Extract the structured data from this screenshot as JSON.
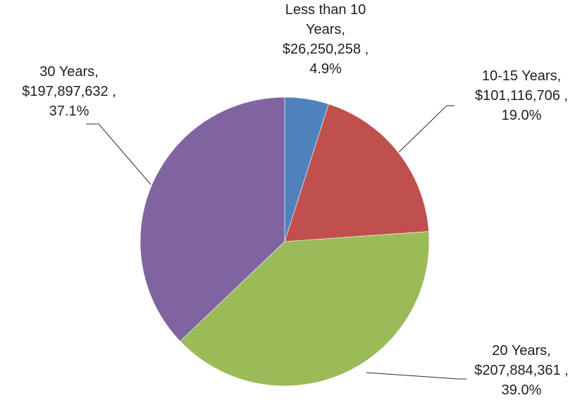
{
  "chart_data": {
    "type": "pie",
    "title": "",
    "slices": [
      {
        "label": "Less than 10 Years",
        "value": 26250258,
        "value_text": "$26,250,258",
        "percent": "4.9%",
        "color": "#4F81BD"
      },
      {
        "label": "10-15 Years",
        "value": 101116706,
        "value_text": "$101,116,706",
        "percent": "19.0%",
        "color": "#C0504D"
      },
      {
        "label": "20 Years",
        "value": 207884361,
        "value_text": "$207,884,361",
        "percent": "39.0%",
        "color": "#9BBB59"
      },
      {
        "label": "30 Years",
        "value": 197897632,
        "value_text": "$197,897,632",
        "percent": "37.1%",
        "color": "#8064A2"
      }
    ],
    "labels": [
      [
        "Less than 10",
        "Years,",
        "$26,250,258 ,",
        "4.9%"
      ],
      [
        "10-15 Years,",
        "$101,116,706 ,",
        "19.0%"
      ],
      [
        "20 Years,",
        "$207,884,361 ,",
        "39.0%"
      ],
      [
        "30 Years,",
        "$197,897,632 ,",
        "37.1%"
      ]
    ],
    "legend": "none"
  }
}
